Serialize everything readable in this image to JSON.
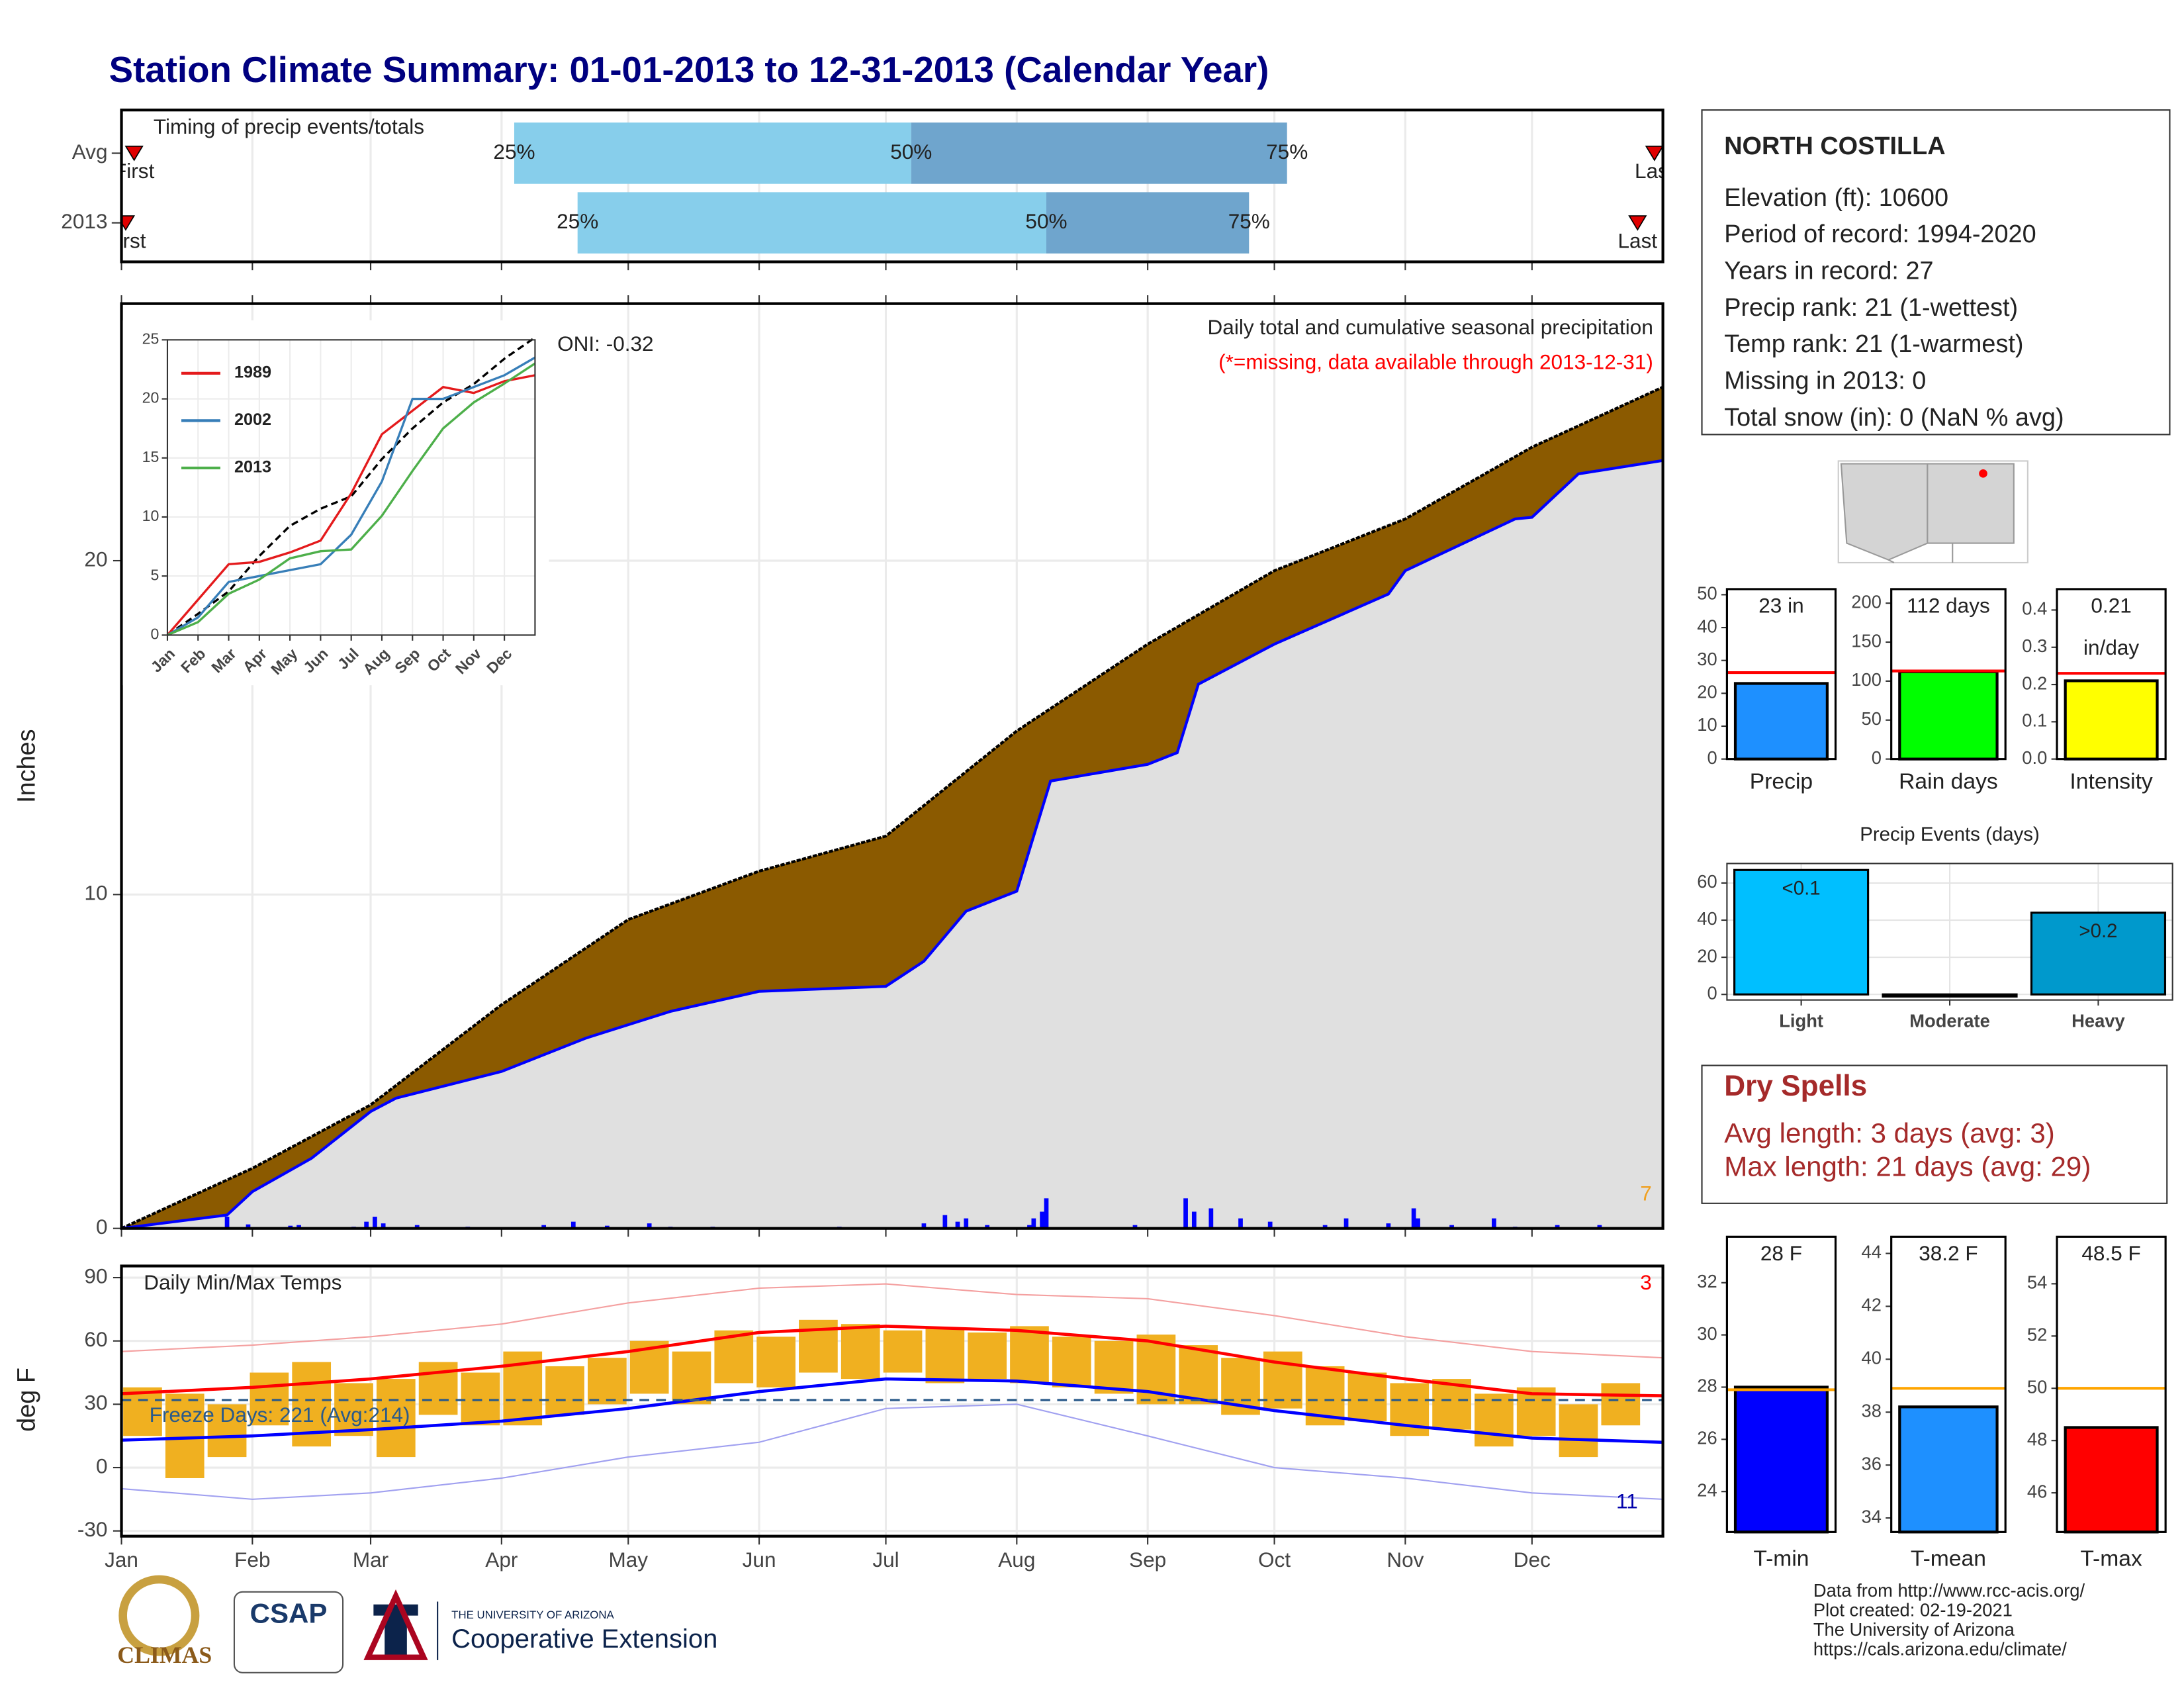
{
  "title": "Station Climate Summary: 01-01-2013 to 12-31-2013 (Calendar Year)",
  "chart_data": [
    {
      "type": "timing",
      "title": "Timing of precip events/totals",
      "categories": [
        "Avg",
        "2013"
      ],
      "percentile_labels": [
        "25%",
        "50%",
        "75%"
      ],
      "percentile_days": [
        [
          93,
          187,
          276
        ],
        [
          108,
          219,
          267
        ]
      ],
      "first_label": "First",
      "last_label": "Last",
      "first_day": [
        3,
        1
      ],
      "last_day": [
        363,
        359
      ],
      "xlim": [
        0,
        365
      ],
      "xticks": [
        0,
        31,
        59,
        90,
        120,
        151,
        181,
        212,
        243,
        273,
        304,
        334
      ],
      "colors": [
        "#87ceeb",
        "#6fa5cd"
      ],
      "marker_color": "#e00000"
    },
    {
      "type": "cumulative",
      "title": "Daily total and cumulative seasonal precipitation",
      "subtitle": "(*=missing, data available through 2013-12-31)",
      "annotations": [
        "ONI: -0.32",
        "7"
      ],
      "ylabel": "Inches",
      "xlim": [
        0,
        365
      ],
      "xticks": [
        0,
        31,
        59,
        90,
        120,
        151,
        181,
        212,
        243,
        273,
        304,
        334
      ],
      "ylim": [
        0,
        27.7
      ],
      "yticks": [
        0,
        10,
        20
      ],
      "avg_x": [
        0,
        31,
        59,
        90,
        120,
        151,
        181,
        212,
        243,
        273,
        304,
        334,
        365
      ],
      "avg_values": [
        0,
        1.8,
        3.7,
        6.7,
        9.25,
        10.7,
        11.75,
        14.9,
        17.5,
        19.7,
        21.25,
        23.4,
        25.2
      ],
      "x": [
        0,
        25,
        31,
        45,
        59,
        65,
        90,
        110,
        130,
        151,
        181,
        190,
        200,
        212,
        220,
        243,
        250,
        255,
        273,
        300,
        304,
        330,
        334,
        345,
        365
      ],
      "values": [
        0,
        0.4,
        1.1,
        2.1,
        3.5,
        3.9,
        4.7,
        5.7,
        6.5,
        7.1,
        7.25,
        8,
        9.5,
        10.1,
        13.4,
        13.9,
        14.25,
        16.3,
        17.5,
        19,
        19.7,
        21.25,
        21.3,
        22.6,
        23
      ],
      "avg_color": "#8b5a00",
      "color": "#0000ff",
      "fill_color": "#e0e0e0",
      "annotation_color": "#ff0000",
      "count_color": "#f0a020",
      "daily_x": [
        25,
        30,
        40,
        42,
        55,
        58,
        60,
        62,
        70,
        82,
        100,
        107,
        115,
        125,
        130,
        140,
        170,
        190,
        195,
        198,
        200,
        205,
        215,
        216,
        218,
        219,
        240,
        252,
        254,
        258,
        265,
        272,
        285,
        290,
        300,
        306,
        307,
        315,
        325,
        330,
        340,
        350
      ],
      "daily_values": [
        0.35,
        0.12,
        0.08,
        0.1,
        0.05,
        0.2,
        0.35,
        0.15,
        0.1,
        0.05,
        0.1,
        0.2,
        0.08,
        0.15,
        0.05,
        0.05,
        0.05,
        0.15,
        0.4,
        0.2,
        0.3,
        0.1,
        0.1,
        0.3,
        0.5,
        0.9,
        0.1,
        0.9,
        0.5,
        0.6,
        0.3,
        0.2,
        0.1,
        0.3,
        0.15,
        0.6,
        0.3,
        0.1,
        0.3,
        0.05,
        0.1,
        0.1
      ]
    },
    {
      "type": "line",
      "x": [
        0,
        1,
        2,
        3,
        4,
        5,
        6,
        7,
        8,
        9,
        10,
        11,
        12
      ],
      "xlim": [
        0,
        12
      ],
      "xticks": [
        {
          "value": 0,
          "label": "Jan"
        },
        {
          "value": 1,
          "label": "Feb"
        },
        {
          "value": 2,
          "label": "Mar"
        },
        {
          "value": 3,
          "label": "Apr"
        },
        {
          "value": 4,
          "label": "May"
        },
        {
          "value": 5,
          "label": "Jun"
        },
        {
          "value": 6,
          "label": "Jul"
        },
        {
          "value": 7,
          "label": "Aug"
        },
        {
          "value": 8,
          "label": "Sep"
        },
        {
          "value": 9,
          "label": "Oct"
        },
        {
          "value": 10,
          "label": "Nov"
        },
        {
          "value": 11,
          "label": "Dec"
        }
      ],
      "ylim": [
        0,
        25
      ],
      "yticks": [
        0,
        5,
        10,
        15,
        20,
        25
      ],
      "series": [
        {
          "color": "#000000",
          "dash": true,
          "values": [
            0,
            1.8,
            3.7,
            6.7,
            9.25,
            10.7,
            11.75,
            14.9,
            17.5,
            19.7,
            21.25,
            23.4,
            25.2
          ]
        },
        {
          "name": "1989",
          "color": "#e41a1c",
          "values": [
            0,
            3,
            6,
            6.2,
            7,
            8,
            12,
            17,
            19,
            21,
            20.5,
            21.5,
            22
          ]
        },
        {
          "name": "2002",
          "color": "#377eb8",
          "values": [
            0,
            1.5,
            4.5,
            5,
            5.5,
            6,
            8.5,
            13,
            20,
            20,
            21,
            22,
            23.5
          ]
        },
        {
          "name": "2013",
          "color": "#4daf4a",
          "values": [
            0,
            1.1,
            3.5,
            4.7,
            6.5,
            7.1,
            7.25,
            10.1,
            13.9,
            17.5,
            19.7,
            21.3,
            23
          ]
        }
      ]
    },
    {
      "type": "temperature",
      "title": "Daily Min/Max Temps",
      "ylabel": "deg F",
      "annotations": [
        "Freeze Days: 221 (Avg:214)",
        "3",
        "11"
      ],
      "freeze": 32,
      "xlim": [
        0,
        365
      ],
      "xticks": [
        {
          "value": 0,
          "label": "Jan"
        },
        {
          "value": 31,
          "label": "Feb"
        },
        {
          "value": 59,
          "label": "Mar"
        },
        {
          "value": 90,
          "label": "Apr"
        },
        {
          "value": 120,
          "label": "May"
        },
        {
          "value": 151,
          "label": "Jun"
        },
        {
          "value": 181,
          "label": "Jul"
        },
        {
          "value": 212,
          "label": "Aug"
        },
        {
          "value": 243,
          "label": "Sep"
        },
        {
          "value": 273,
          "label": "Oct"
        },
        {
          "value": 304,
          "label": "Nov"
        },
        {
          "value": 334,
          "label": "Dec"
        }
      ],
      "ylim": [
        -32.5,
        95.5
      ],
      "yticks": [
        -30,
        0,
        30,
        60,
        90
      ],
      "x": [
        0,
        31,
        59,
        90,
        120,
        151,
        181,
        212,
        243,
        273,
        304,
        334,
        365
      ],
      "series": [
        {
          "color": "#f4a0a0",
          "values": [
            55,
            58,
            62,
            68,
            78,
            85,
            87,
            82,
            80,
            72,
            62,
            55,
            52
          ]
        },
        {
          "color": "#a0a0f0",
          "values": [
            -10,
            -15,
            -12,
            -5,
            5,
            12,
            28,
            30,
            15,
            0,
            -5,
            -12,
            -15
          ]
        },
        {
          "color": "#ff0000",
          "values": [
            35,
            38,
            42,
            48,
            55,
            64,
            67,
            65,
            60,
            50,
            42,
            35,
            34
          ]
        },
        {
          "color": "#0000ff",
          "values": [
            13,
            15,
            18,
            22,
            28,
            36,
            42,
            41,
            36,
            27,
            20,
            14,
            12
          ]
        }
      ],
      "daily_x": [
        5,
        15,
        25,
        35,
        45,
        55,
        65,
        75,
        85,
        95,
        105,
        115,
        125,
        135,
        145,
        155,
        165,
        175,
        185,
        195,
        205,
        215,
        225,
        235,
        245,
        255,
        265,
        275,
        285,
        295,
        305,
        315,
        325,
        335,
        345,
        355
      ],
      "daily_max": [
        38,
        35,
        30,
        45,
        50,
        40,
        42,
        50,
        45,
        55,
        48,
        52,
        60,
        55,
        65,
        62,
        70,
        68,
        65,
        66,
        64,
        67,
        62,
        60,
        63,
        58,
        52,
        55,
        48,
        45,
        40,
        42,
        35,
        38,
        30,
        40
      ],
      "daily_min": [
        15,
        -5,
        5,
        20,
        10,
        15,
        5,
        25,
        20,
        20,
        25,
        30,
        35,
        30,
        40,
        38,
        45,
        42,
        45,
        40,
        42,
        40,
        38,
        35,
        30,
        30,
        25,
        28,
        20,
        22,
        15,
        18,
        10,
        15,
        5,
        20
      ],
      "daily_color": "#f0b020",
      "freeze_color": "#2a5a8a"
    },
    {
      "type": "summary_bars",
      "avg_color": "#ff0000",
      "panels": [
        {
          "category": "Precip",
          "value": 23,
          "value_label": "23 in",
          "avg": 26.3,
          "ylim": [
            0,
            51.7
          ],
          "yticks": [
            0,
            10,
            20,
            30,
            40,
            50
          ],
          "color": "#1e90ff"
        },
        {
          "category": "Rain days",
          "value": 112,
          "value_label": "112 days",
          "avg": 113,
          "ylim": [
            0,
            218
          ],
          "yticks": [
            0,
            50,
            100,
            150,
            200
          ],
          "color": "#00ff00"
        },
        {
          "category": "Intensity",
          "value": 0.21,
          "value_label": "0.21",
          "unit_label": "in/day",
          "avg": 0.23,
          "ylim": [
            0,
            0.456
          ],
          "yticks": [
            {
              "value": 0,
              "label": "0.0"
            },
            0.1,
            0.2,
            0.3,
            0.4
          ],
          "color": "#ffff00"
        }
      ]
    },
    {
      "type": "bar",
      "title": "Precip Events (days)",
      "categories": [
        "Light",
        "Moderate",
        "Heavy"
      ],
      "values": [
        67,
        0,
        44
      ],
      "value_labels": [
        "<0.1",
        null,
        ">0.2"
      ],
      "colors": [
        "#00bfff",
        "#555555",
        "#0099cc"
      ],
      "ylim": [
        -3,
        70.5
      ],
      "yticks": [
        0,
        20,
        40,
        60
      ]
    },
    {
      "type": "summary_bars",
      "avg_color": "#ffa500",
      "panels": [
        {
          "category": "T-min",
          "value": 28,
          "value_label": "28 F",
          "avg": 27.9,
          "ylim": [
            22.45,
            33.76
          ],
          "yticks": [
            24,
            26,
            28,
            30,
            32
          ],
          "color": "#0000ff"
        },
        {
          "category": "T-mean",
          "value": 38.2,
          "value_label": "38.2 F",
          "avg": 38.9,
          "ylim": [
            33.47,
            44.63
          ],
          "yticks": [
            34,
            36,
            38,
            40,
            42,
            44
          ],
          "color": "#1e90ff"
        },
        {
          "category": "T-max",
          "value": 48.5,
          "value_label": "48.5 F",
          "avg": 50,
          "ylim": [
            44.5,
            55.8
          ],
          "yticks": [
            46,
            48,
            50,
            52,
            54
          ],
          "color": "#ff0000"
        }
      ]
    }
  ],
  "station": {
    "name": "NORTH COSTILLA",
    "lines": [
      "Elevation (ft): 10600",
      "Period of record: 1994-2020",
      "Years in record: 27",
      "Precip rank: 21 (1-wettest)",
      "Temp rank: 21 (1-warmest)",
      "Missing in 2013: 0",
      "Total snow (in): 0 (NaN % avg)"
    ]
  },
  "dry_spells": {
    "title": "Dry Spells",
    "lines": [
      "Avg length: 3 days (avg: 3)",
      "Max length: 21 days (avg: 29)"
    ]
  },
  "footer": [
    "Data from http://www.rcc-acis.org/",
    "Plot created: 02-19-2021",
    "The University of Arizona",
    "https://cals.arizona.edu/climate/"
  ],
  "logos": [
    "CLIMAS",
    "CSAP",
    "THE UNIVERSITY OF ARIZONA",
    "Cooperative Extension"
  ]
}
